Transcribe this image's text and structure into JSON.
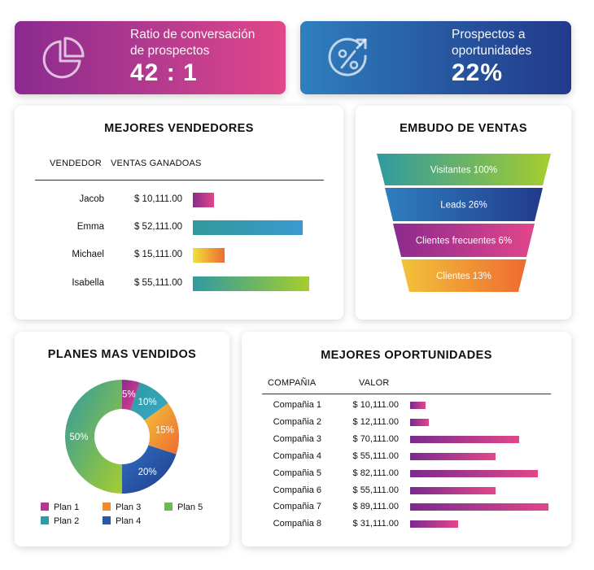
{
  "kpis": [
    {
      "label_line1": "Ratio de conversación",
      "label_line2": "de prospectos",
      "value": "42 : 1",
      "icon": "pie-chart-icon"
    },
    {
      "label_line1": "Prospectos a",
      "label_line2": "oportunidades",
      "value": "22%",
      "icon": "percent-icon"
    }
  ],
  "vendedores": {
    "title": "MEJORES VENDEDORES",
    "col_vendedor": "VENDEDOR",
    "col_ventas": "VENTAS GANADOAS"
  },
  "embudo": {
    "title": "EMBUDO DE VENTAS"
  },
  "planes": {
    "title": "PLANES MAS VENDIDOS"
  },
  "oportunidades": {
    "title": "MEJORES OPORTUNIDADES",
    "col_compania": "COMPAÑIA",
    "col_valor": "VALOR"
  },
  "chart_data": [
    {
      "type": "bar",
      "title": "MEJORES VENDEDORES",
      "categories": [
        "Jacob",
        "Emma",
        "Michael",
        "Isabella"
      ],
      "values": [
        10111,
        52111,
        15111,
        55111
      ],
      "labels": [
        "$ 10,111.00",
        "$ 52,111.00",
        "$ 15,111.00",
        "$ 55,111.00"
      ],
      "colors": [
        [
          "#8b2a8f",
          "#e2468a"
        ],
        [
          "#2f9a9a",
          "#3a9ad0"
        ],
        [
          "#f0e23a",
          "#ee6b30"
        ],
        [
          "#2f9aa0",
          "#a5cd2e"
        ]
      ]
    },
    {
      "type": "funnel",
      "title": "EMBUDO DE VENTAS",
      "categories": [
        "Visitantes",
        "Leads",
        "Clientes frecuentes",
        "Clientes"
      ],
      "labels": [
        "Visitantes 100%",
        "Leads 26%",
        "Clientes frecuentes 6%",
        "Clientes 13%"
      ],
      "values": [
        100,
        26,
        6,
        13
      ],
      "colors": [
        [
          "#2f9aa0",
          "#a5cd2e"
        ],
        [
          "#2f7fbf",
          "#223a8c"
        ],
        [
          "#8b2a8f",
          "#e2468a"
        ],
        [
          "#f2c33a",
          "#ee6b30"
        ]
      ]
    },
    {
      "type": "pie",
      "title": "PLANES MAS VENDIDOS",
      "categories": [
        "Plan 1",
        "Plan 2",
        "Plan 3",
        "Plan 4",
        "Plan 5"
      ],
      "values": [
        5,
        10,
        15,
        20,
        50
      ],
      "labels": [
        "5%",
        "10%",
        "15%",
        "20%",
        "50%"
      ],
      "colors": [
        "#b03a8c",
        "#2f9aa8",
        "#ee8a30",
        "#2a58a5",
        "#6fb85a"
      ],
      "gradient_colors": [
        [
          "#8b2a8f",
          "#e2468a"
        ],
        [
          "#2f9aa0",
          "#3aa8c8"
        ],
        [
          "#f2c33a",
          "#ee6b30"
        ],
        [
          "#2f6fbf",
          "#223a8c"
        ],
        [
          "#2f9aa0",
          "#a5cd2e"
        ]
      ]
    },
    {
      "type": "bar",
      "title": "MEJORES OPORTUNIDADES",
      "categories": [
        "Compañia 1",
        "Compañia 2",
        "Compañia 3",
        "Compañia 4",
        "Compañia 5",
        "Compañia 6",
        "Compañia 7",
        "Compañia 8"
      ],
      "values": [
        10111,
        12111,
        70111,
        55111,
        82111,
        55111,
        89111,
        31111
      ],
      "labels": [
        "$ 10,111.00",
        "$ 12,111.00",
        "$ 70,111.00",
        "$ 55,111.00",
        "$ 82,111.00",
        "$ 55,111.00",
        "$ 89,111.00",
        "$ 31,111.00"
      ],
      "colors": [
        "#7a2b8f",
        "#e2468a"
      ]
    }
  ]
}
